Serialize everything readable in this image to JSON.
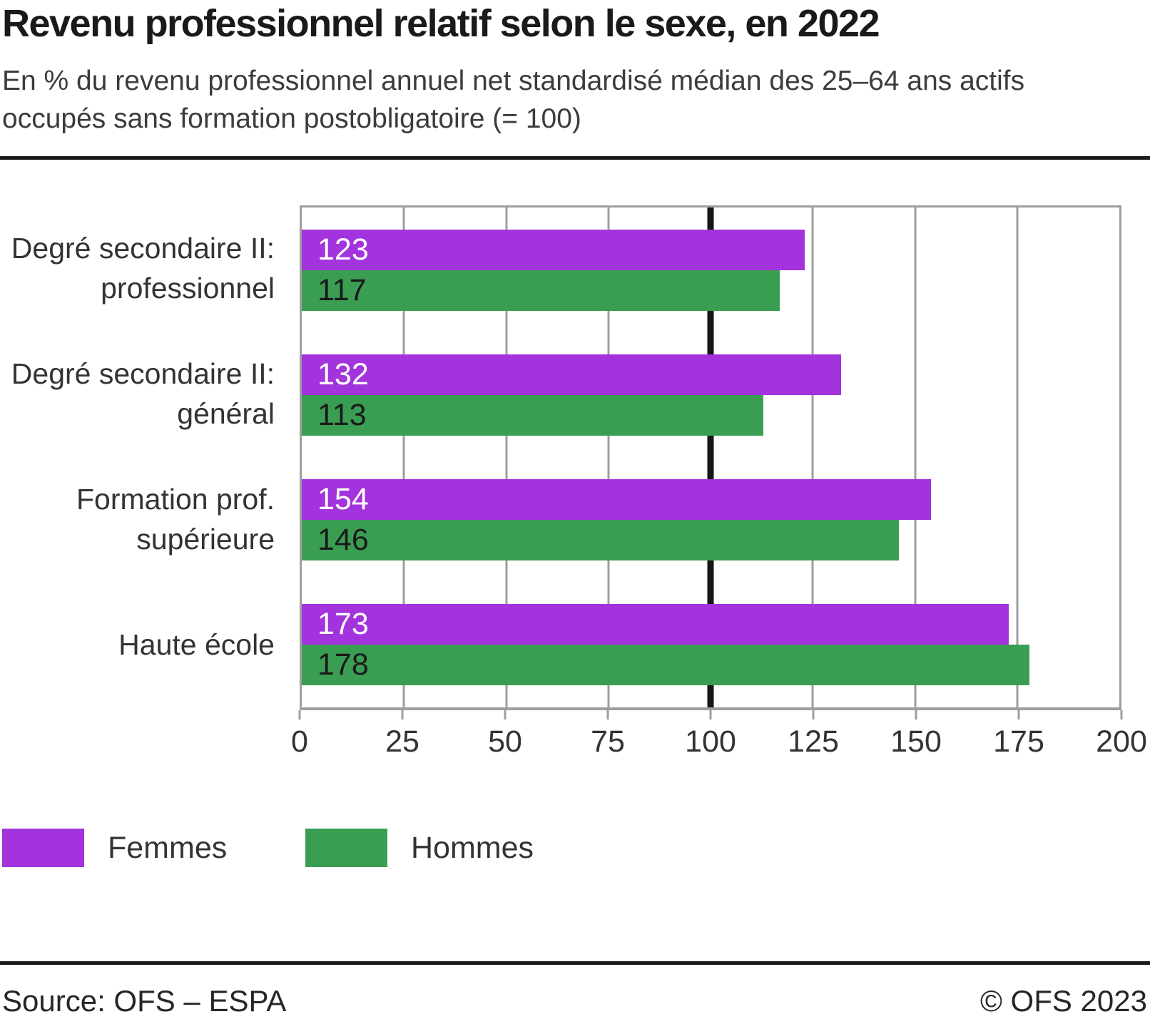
{
  "header": {
    "title": "Revenu professionnel relatif selon le sexe, en 2022",
    "subtitle": "En % du revenu professionnel annuel net standardisé médian des 25–64 ans actifs occupés sans formation postobligatoire (= 100)"
  },
  "chart_data": {
    "type": "bar",
    "orientation": "horizontal",
    "title": "Revenu professionnel relatif selon le sexe, en 2022",
    "subtitle": "En % du revenu professionnel annuel net standardisé médian des 25–64 ans actifs occupés sans formation postobligatoire (= 100)",
    "categories": [
      [
        "Degré secondaire II:",
        "professionnel"
      ],
      [
        "Degré secondaire II:",
        "général"
      ],
      [
        "Formation prof.",
        "supérieure"
      ],
      [
        "Haute école"
      ]
    ],
    "series": [
      {
        "name": "Femmes",
        "color": "#A233DD",
        "label_color": "#FFFFFF",
        "values": [
          123,
          132,
          154,
          173
        ]
      },
      {
        "name": "Hommes",
        "color": "#3A9E52",
        "label_color": "#1A1A1A",
        "values": [
          117,
          113,
          146,
          178
        ]
      }
    ],
    "xlim": [
      0,
      200
    ],
    "xticks": [
      0,
      25,
      50,
      75,
      100,
      125,
      150,
      175,
      200
    ],
    "reference_line": 100,
    "grid": "vertical",
    "legend_position": "bottom",
    "grid_color": "#9E9E9E",
    "reference_line_color": "#161616"
  },
  "footer": {
    "source": "Source: OFS – ESPA",
    "copyright": "© OFS 2023"
  }
}
